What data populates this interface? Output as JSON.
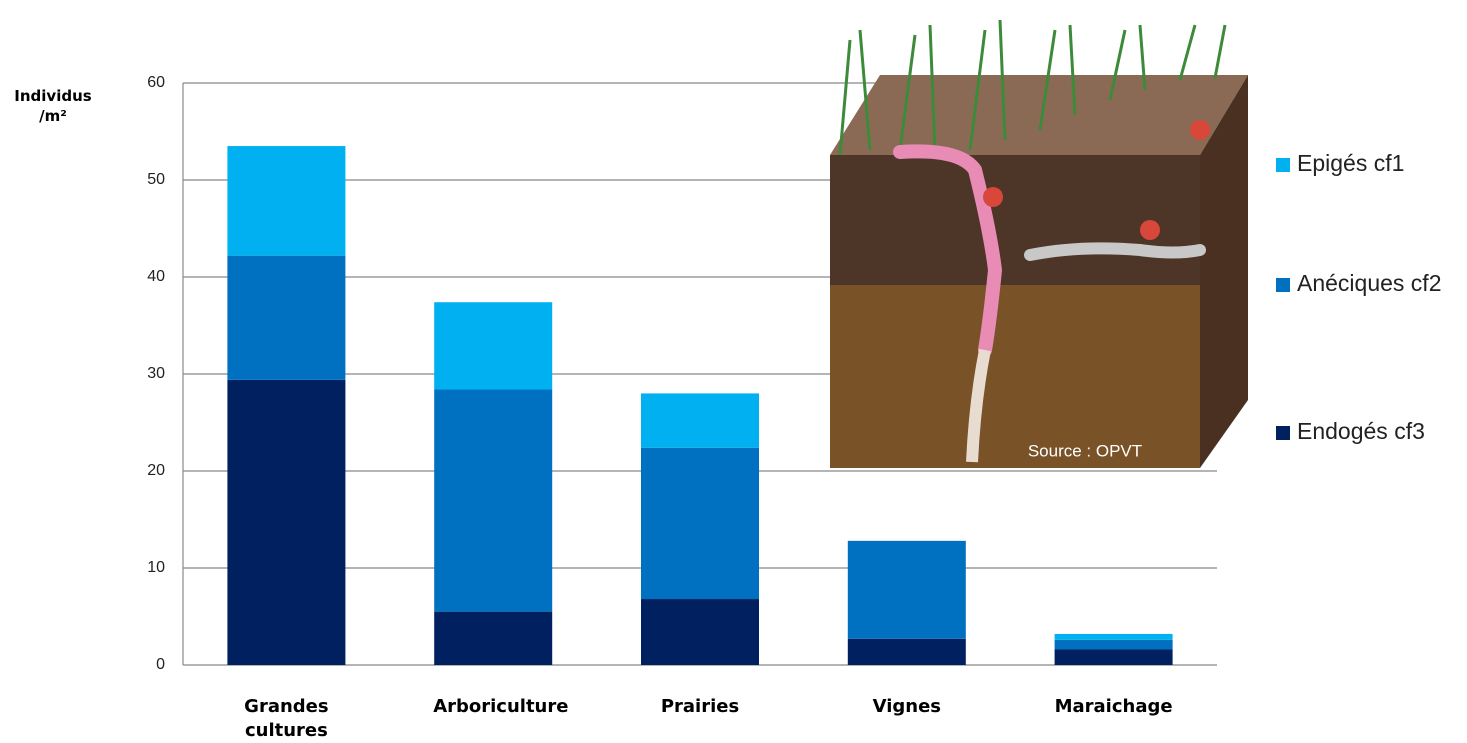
{
  "chart_data": {
    "type": "stacked-bar",
    "ylabel": "Individus /m²",
    "categories": [
      "Grandes cultures",
      "Arboriculture",
      "Prairies",
      "Vignes",
      "Maraichage"
    ],
    "series": [
      {
        "name": "Endogés cf3",
        "color": "#002060",
        "values": [
          29.4,
          5.5,
          6.8,
          2.7,
          1.6
        ]
      },
      {
        "name": "Anéciques cf2",
        "color": "#0070c0",
        "values": [
          12.8,
          22.9,
          15.6,
          10.1,
          1.0
        ]
      },
      {
        "name": "Epigés cf1",
        "color": "#00b0f0",
        "values": [
          11.3,
          9.0,
          5.6,
          0,
          0.6
        ]
      }
    ],
    "ylim": [
      0,
      60
    ],
    "yticks": [
      0,
      10,
      20,
      30,
      40,
      50,
      60
    ],
    "grid": true,
    "legend": "right",
    "annotation": "Source : OPVT"
  }
}
